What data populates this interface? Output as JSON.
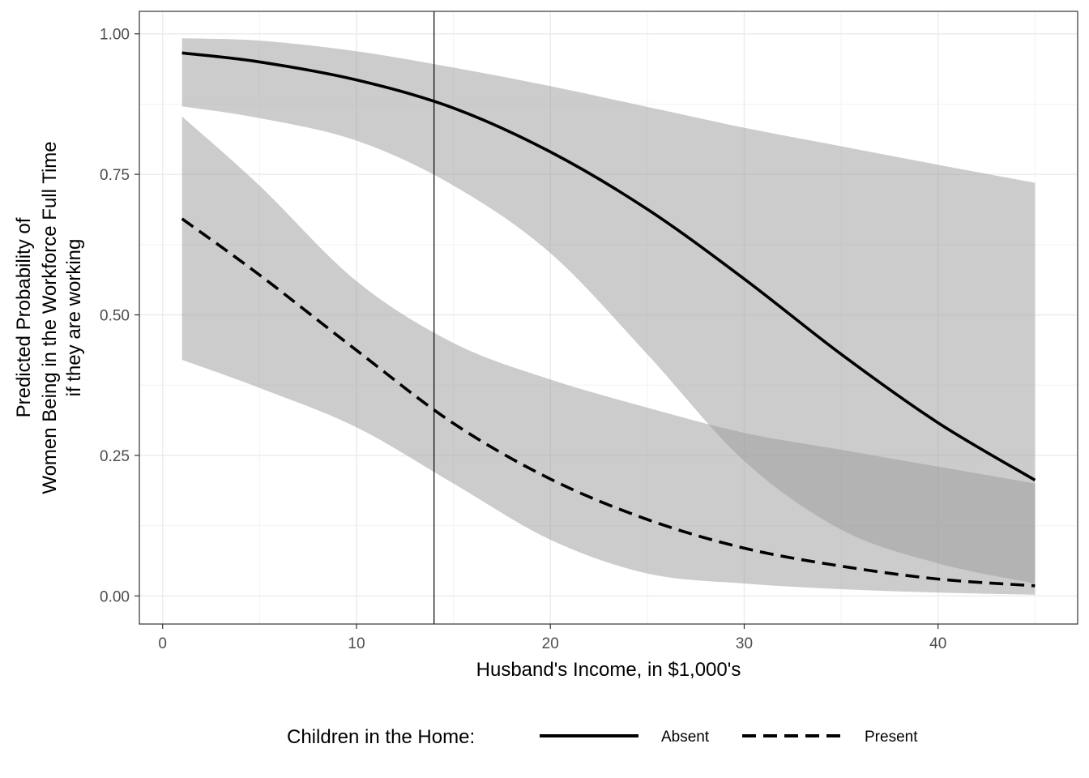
{
  "chart_data": {
    "type": "line",
    "title": "",
    "xlabel": "Husband's Income, in $1,000's",
    "ylabel_lines": [
      "Predicted Probability of",
      "Women Being in the Workforce Full Time",
      "if they are working"
    ],
    "xlim": [
      -1.2,
      47.2
    ],
    "ylim": [
      -0.05,
      1.04
    ],
    "x_ticks": [
      0,
      10,
      20,
      30,
      40
    ],
    "x_tick_labels": [
      "0",
      "10",
      "20",
      "30",
      "40"
    ],
    "y_ticks": [
      0,
      0.25,
      0.5,
      0.75,
      1.0
    ],
    "y_tick_labels": [
      "0.00",
      "0.25",
      "0.50",
      "0.75",
      "1.00"
    ],
    "grid": true,
    "vline_x": 14,
    "legend": {
      "title": "Children in the Home:",
      "position": "bottom"
    },
    "x": [
      1,
      5,
      10,
      15,
      20,
      25,
      30,
      35,
      40,
      45
    ],
    "series": [
      {
        "name": "Absent",
        "linetype": "solid",
        "values": [
          0.966,
          0.95,
          0.918,
          0.868,
          0.79,
          0.688,
          0.564,
          0.43,
          0.308,
          0.206
        ],
        "lower": [
          0.871,
          0.85,
          0.81,
          0.73,
          0.61,
          0.43,
          0.24,
          0.118,
          0.058,
          0.022
        ],
        "upper": [
          0.992,
          0.988,
          0.969,
          0.94,
          0.907,
          0.87,
          0.833,
          0.8,
          0.767,
          0.735
        ]
      },
      {
        "name": "Present",
        "linetype": "dashed",
        "values": [
          0.671,
          0.571,
          0.437,
          0.307,
          0.208,
          0.136,
          0.085,
          0.053,
          0.03,
          0.018
        ],
        "lower": [
          0.42,
          0.37,
          0.3,
          0.2,
          0.1,
          0.04,
          0.022,
          0.012,
          0.006,
          0.002
        ],
        "upper": [
          0.853,
          0.73,
          0.56,
          0.45,
          0.385,
          0.335,
          0.29,
          0.26,
          0.23,
          0.2
        ]
      }
    ]
  }
}
